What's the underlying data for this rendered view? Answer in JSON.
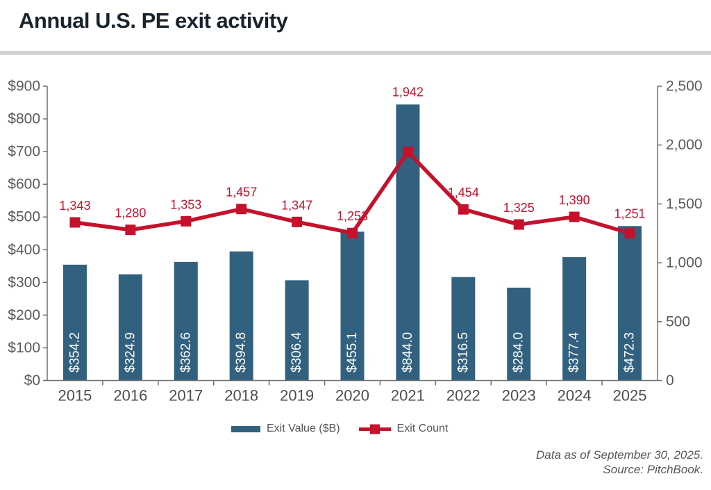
{
  "header": {
    "title": "Annual U.S. PE exit activity"
  },
  "chart_data": {
    "type": "bar",
    "subtype": "combo-bar-line-dual-axis",
    "title": "Annual U.S. PE exit activity",
    "xlabel": "",
    "ylabel_left": "Exit value ($B)",
    "ylabel_right": "Exit count",
    "categories": [
      "2015",
      "2016",
      "2017",
      "2018",
      "2019",
      "2020",
      "2021",
      "2022",
      "2023",
      "2024",
      "2025"
    ],
    "series": [
      {
        "name": "Exit Value ($B)",
        "type": "bar",
        "axis": "left",
        "values": [
          354.2,
          324.9,
          362.6,
          394.8,
          306.4,
          455.1,
          844.0,
          316.5,
          284.0,
          377.4,
          472.3
        ],
        "data_labels": [
          "$354.2",
          "$324.9",
          "$362.6",
          "$394.8",
          "$306.4",
          "$455.1",
          "$844.0",
          "$316.5",
          "$284.0",
          "$377.4",
          "$472.3"
        ]
      },
      {
        "name": "Exit Count",
        "type": "line",
        "axis": "right",
        "values": [
          1343,
          1280,
          1353,
          1457,
          1347,
          1253,
          1942,
          1454,
          1325,
          1390,
          1251
        ],
        "data_labels": [
          "1,343",
          "1,280",
          "1,353",
          "1,457",
          "1,347",
          "1,253",
          "1,942",
          "1,454",
          "1,325",
          "1,390",
          "1,251"
        ]
      }
    ],
    "left_axis": {
      "min": 0,
      "max": 900,
      "tick_labels": [
        "$0",
        "$100",
        "$200",
        "$300",
        "$400",
        "$500",
        "$600",
        "$700",
        "$800",
        "$900"
      ]
    },
    "right_axis": {
      "min": 0,
      "max": 2500,
      "tick_labels": [
        "0",
        "500",
        "1,000",
        "1,500",
        "2,000",
        "2,500"
      ]
    },
    "grid": false,
    "legend_position": "bottom"
  },
  "legend": {
    "items": [
      {
        "label": "Exit Value ($B)",
        "swatch": "bar"
      },
      {
        "label": "Exit Count",
        "swatch": "line-marker"
      }
    ]
  },
  "footer": {
    "line1": "Data as of September 30, 2025.",
    "line2": "Source: PitchBook."
  },
  "colors": {
    "bar": "#32617F",
    "line": "#C4122D",
    "axis": "#6D6E71",
    "tick_text": "#58595B",
    "category_text": "#4C4D4F",
    "bar_label_text": "#FFFFFF",
    "title_text": "#1A232C",
    "divider": "#D1D3D4",
    "footer_text": "#55565A"
  }
}
